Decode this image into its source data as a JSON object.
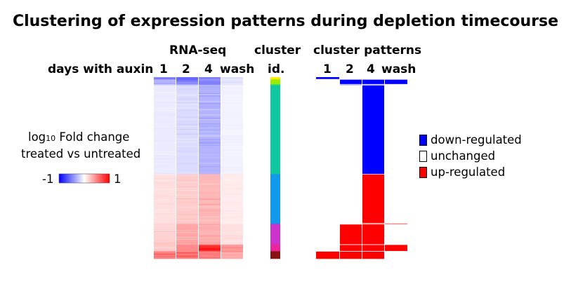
{
  "title": "Clustering of expression patterns during depletion timecourse",
  "rnaseq_label": "RNA-seq",
  "days_label": "days with auxin",
  "columns": [
    "1",
    "2",
    "4",
    "wash"
  ],
  "cluster_label_line1": "cluster",
  "cluster_label_line2": "id.",
  "patterns_label": "cluster patterns",
  "colorbar": {
    "label_log": "log",
    "label_sub": "10",
    "label_rest": " Fold change",
    "label_line2": "treated vs untreated",
    "min_label": "-1",
    "max_label": "1"
  },
  "legend": [
    {
      "label": "down-regulated",
      "color": "#0000ff"
    },
    {
      "label": "unchanged",
      "color": "#ffffff"
    },
    {
      "label": "up-regulated",
      "color": "#ff0000"
    }
  ],
  "colors": {
    "down": "#0000ff",
    "up": "#ff0000",
    "unchanged": "#ffffff"
  },
  "clusters": [
    {
      "frac": 0.012,
      "color": "#ffee00",
      "heat": [
        -0.6,
        -0.6,
        -0.5,
        -0.1
      ],
      "pattern": [
        "down",
        "unchanged",
        "unchanged",
        "unchanged"
      ]
    },
    {
      "frac": 0.027,
      "color": "#99ee00",
      "heat": [
        -0.3,
        -0.45,
        -0.5,
        -0.1
      ],
      "pattern": [
        "unchanged",
        "down",
        "down",
        "down"
      ]
    },
    {
      "frac": 0.005,
      "color": "#22dd66",
      "heat": [
        -0.2,
        -0.3,
        -0.4,
        -0.1
      ],
      "pattern": [
        "unchanged",
        "down",
        "down",
        "unchanged"
      ]
    },
    {
      "frac": 0.48,
      "color": "#11c9a0",
      "heat": [
        -0.08,
        -0.14,
        -0.3,
        -0.05
      ],
      "pattern": [
        "unchanged",
        "unchanged",
        "down",
        "unchanged"
      ]
    },
    {
      "frac": 0.265,
      "color": "#1199ee",
      "heat": [
        0.12,
        0.2,
        0.28,
        0.08
      ],
      "pattern": [
        "unchanged",
        "unchanged",
        "up",
        "unchanged"
      ]
    },
    {
      "frac": 0.005,
      "color": "#5566ee",
      "heat": [
        0.15,
        0.22,
        0.3,
        0.1
      ],
      "pattern": [
        "unchanged",
        "unchanged",
        "up",
        "up"
      ]
    },
    {
      "frac": 0.11,
      "color": "#cc33cc",
      "heat": [
        0.18,
        0.35,
        0.32,
        0.12
      ],
      "pattern": [
        "unchanged",
        "up",
        "up",
        "unchanged"
      ]
    },
    {
      "frac": 0.036,
      "color": "#ee2299",
      "heat": [
        0.22,
        0.45,
        0.85,
        0.4
      ],
      "pattern": [
        "unchanged",
        "up",
        "up",
        "up"
      ]
    },
    {
      "frac": 0.04,
      "color": "#881111",
      "heat": [
        0.55,
        0.5,
        0.5,
        0.35
      ],
      "pattern": [
        "up",
        "up",
        "up",
        "unchanged"
      ]
    }
  ]
}
